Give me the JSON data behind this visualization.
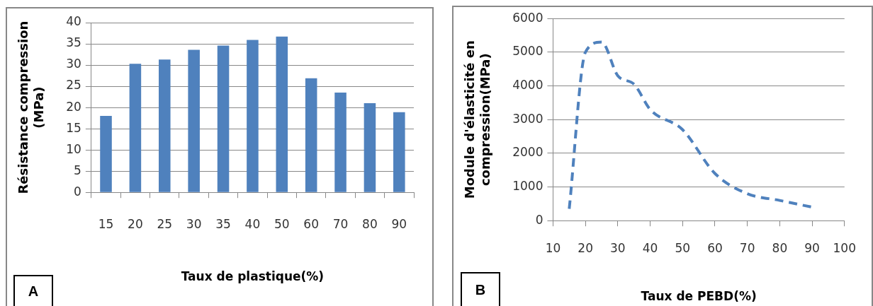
{
  "chart_data": [
    {
      "type": "bar",
      "categories": [
        "15",
        "20",
        "25",
        "30",
        "35",
        "40",
        "50",
        "60",
        "70",
        "80",
        "90"
      ],
      "values": [
        18,
        30.3,
        31.3,
        33.6,
        34.6,
        35.9,
        36.7,
        26.9,
        23.5,
        21,
        18.9
      ],
      "color": "#4f81bd",
      "xlabel": "Taux de plastique(%)",
      "ylabel": "Résistance compression\n(MPa)",
      "ylim": [
        0,
        40
      ],
      "yticks": [
        0,
        5,
        10,
        15,
        20,
        25,
        30,
        35,
        40
      ],
      "grid": "y",
      "annotations": [
        "A"
      ]
    },
    {
      "type": "line",
      "x": [
        15,
        20,
        25,
        30,
        35,
        40,
        50,
        60,
        70,
        80,
        90
      ],
      "values": [
        350,
        5000,
        5300,
        4300,
        4050,
        3300,
        2700,
        1400,
        800,
        600,
        400
      ],
      "color": "#4f81bd",
      "line_style": "dashed",
      "marker": "none",
      "xlabel": "Taux de PEBD(%)",
      "ylabel": "Module d'élasticité en\ncompression(MPa)",
      "xlim": [
        10,
        100
      ],
      "xticks": [
        10,
        20,
        30,
        40,
        50,
        60,
        70,
        80,
        90,
        100
      ],
      "ylim": [
        0,
        6000
      ],
      "yticks": [
        0,
        1000,
        2000,
        3000,
        4000,
        5000,
        6000
      ],
      "grid": "y",
      "annotations": [
        "B"
      ]
    }
  ]
}
